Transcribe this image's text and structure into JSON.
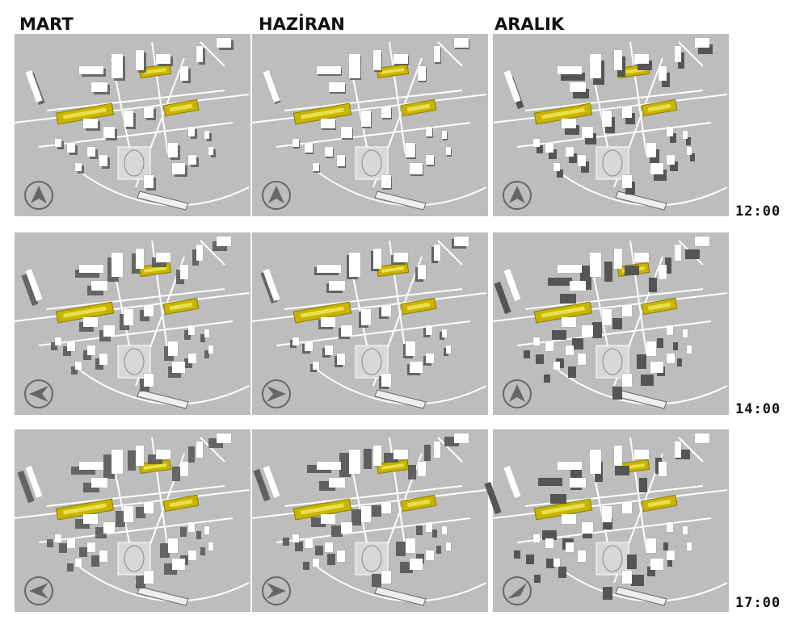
{
  "columns": [
    "MART",
    "HAZİRAN",
    "ARALIK"
  ],
  "rows": [
    "12:00",
    "14:00",
    "17:00"
  ]
}
